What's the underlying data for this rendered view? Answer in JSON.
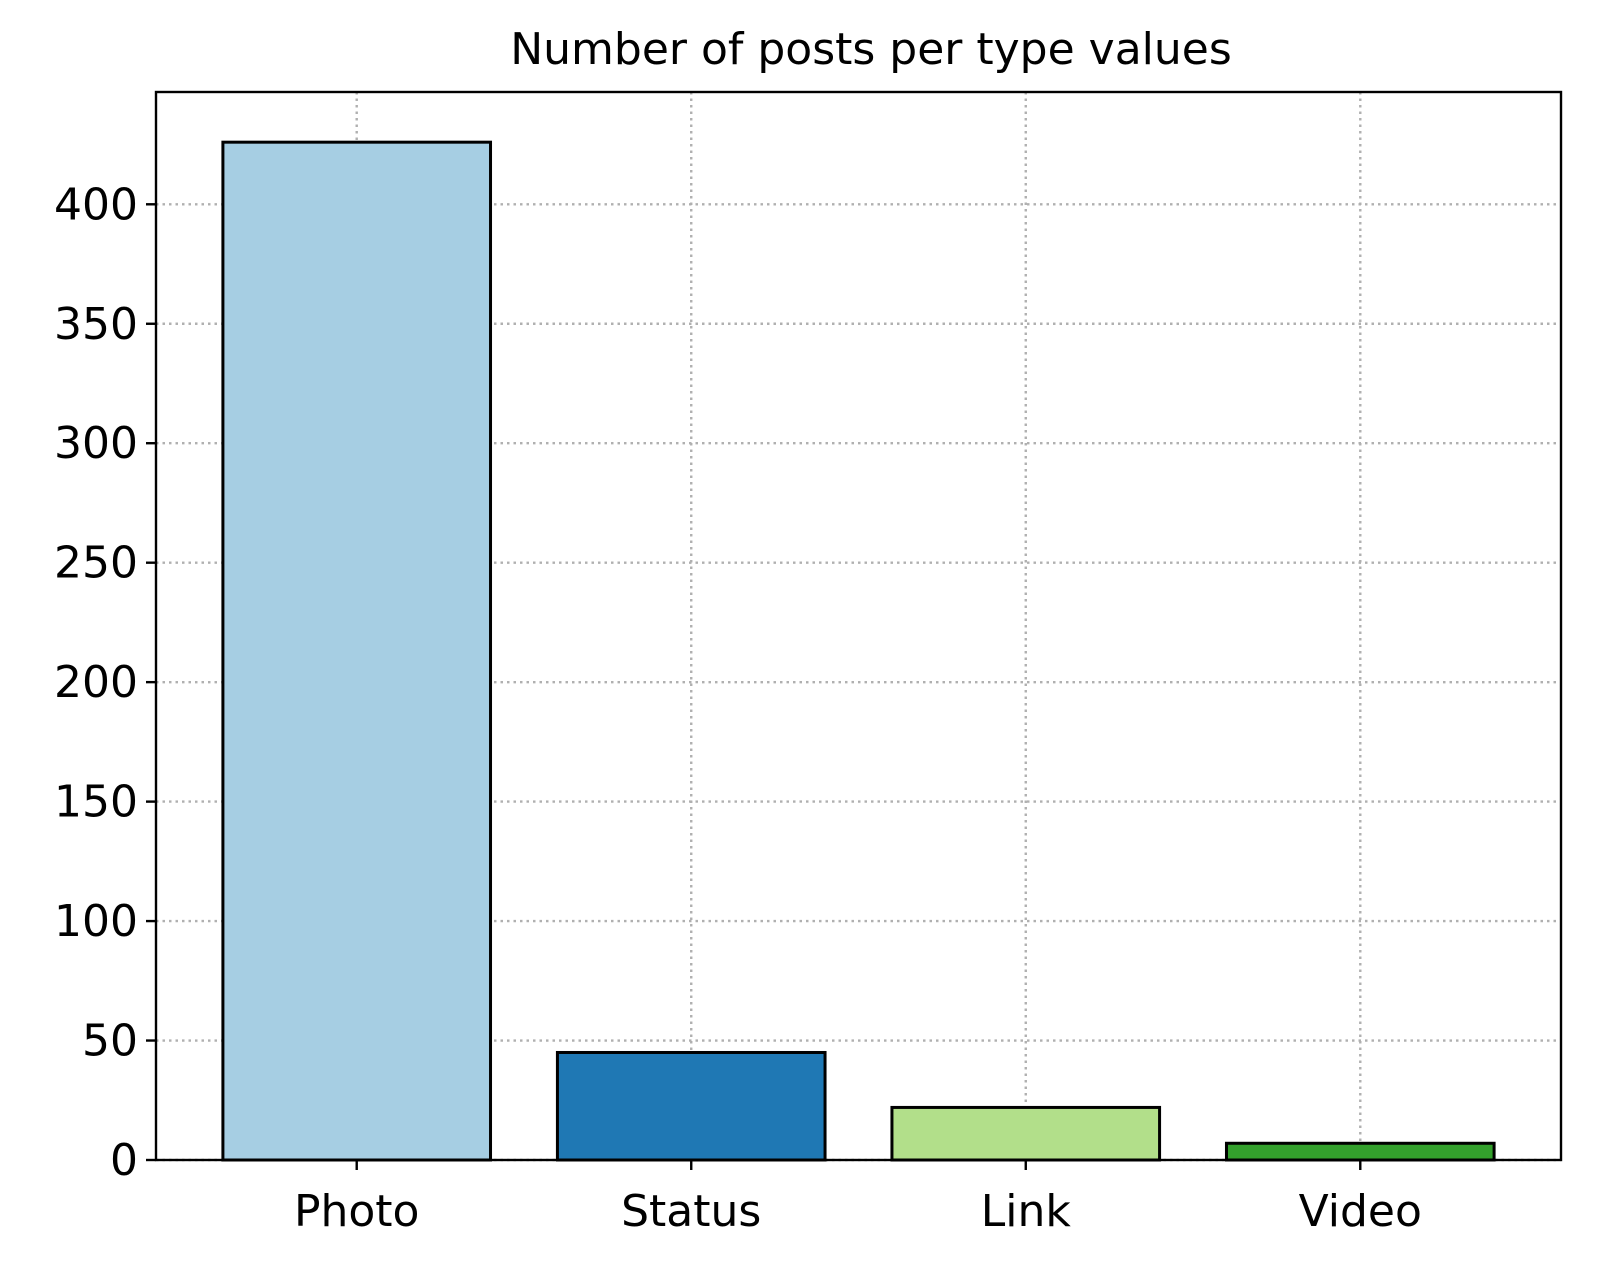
{
  "chart_data": {
    "type": "bar",
    "title": "Number of posts per type values",
    "xlabel": "",
    "ylabel": "",
    "categories": [
      "Photo",
      "Status",
      "Link",
      "Video"
    ],
    "values": [
      426,
      45,
      22,
      7
    ],
    "colors": [
      "#a6cee3",
      "#1f78b4",
      "#b2df8a",
      "#33a02c"
    ],
    "edgecolor": "#000000",
    "ylim": [
      0,
      447
    ],
    "yticks": [
      0,
      50,
      100,
      150,
      200,
      250,
      300,
      350,
      400
    ],
    "grid": true,
    "legend": "none"
  }
}
